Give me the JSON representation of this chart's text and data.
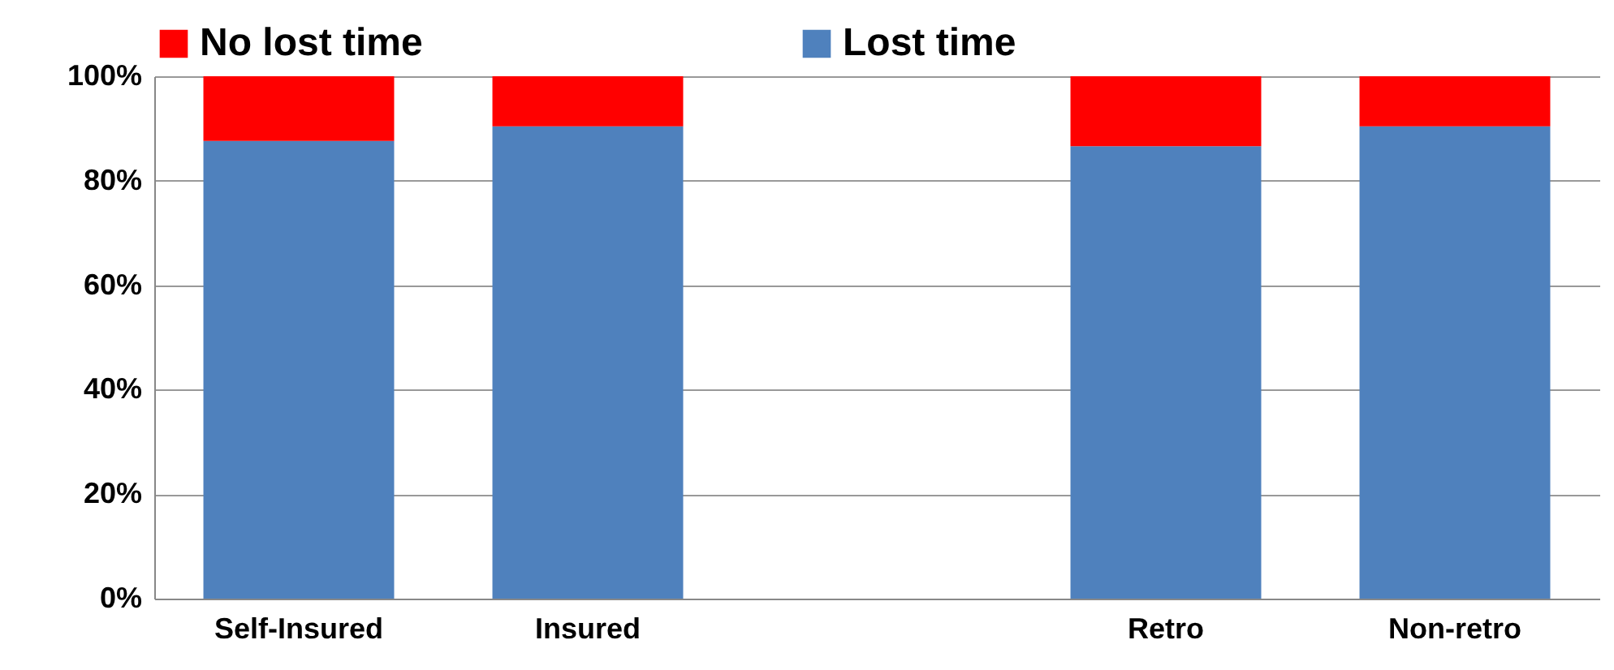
{
  "chart_data": {
    "type": "bar",
    "stacked": true,
    "categories": [
      "Self-Insured",
      "Insured",
      null,
      "Retro",
      "Non-retro"
    ],
    "series": [
      {
        "name": "Lost time",
        "color": "#4f81bd",
        "values": [
          87.6,
          90.4,
          null,
          86.6,
          90.4
        ]
      },
      {
        "name": "No lost time",
        "color": "#ff0000",
        "values": [
          12.4,
          9.6,
          null,
          13.4,
          9.6
        ]
      }
    ],
    "ylim": [
      0,
      100
    ],
    "yticks": [
      {
        "value": 0,
        "label": "0%"
      },
      {
        "value": 20,
        "label": "20%"
      },
      {
        "value": 40,
        "label": "40%"
      },
      {
        "value": 60,
        "label": "60%"
      },
      {
        "value": 80,
        "label": "80%"
      },
      {
        "value": 100,
        "label": "100%"
      }
    ],
    "grid": "y",
    "legend": "top"
  }
}
